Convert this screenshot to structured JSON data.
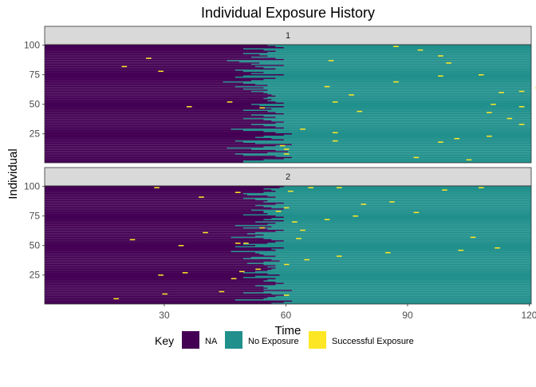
{
  "chart_data": {
    "type": "heatmap",
    "title": "Individual Exposure History",
    "xlabel": "Time",
    "ylabel": "Individual",
    "xlim": [
      1,
      120
    ],
    "ylim": [
      1,
      100
    ],
    "x_ticks": [
      "30",
      "60",
      "90",
      "120"
    ],
    "y_ticks": [
      "25",
      "50",
      "75",
      "100"
    ],
    "panels": [
      {
        "label": "1",
        "band_start": [
          50,
          50,
          55,
          60,
          62,
          58,
          50,
          48,
          56,
          61,
          58,
          52,
          46,
          55,
          58,
          62,
          53,
          50,
          48,
          60,
          57,
          53,
          55,
          60,
          62,
          58,
          55,
          50,
          47,
          60,
          58,
          55,
          52,
          58,
          60,
          57,
          55,
          50,
          58,
          55,
          52,
          60,
          58,
          56,
          50,
          57,
          55,
          60,
          54,
          52,
          60,
          58,
          56,
          57,
          55,
          56,
          58,
          57,
          56,
          55,
          52,
          56,
          50,
          55,
          48,
          56,
          53,
          50,
          45,
          52,
          55,
          58,
          48,
          50,
          60,
          52,
          55,
          50,
          48,
          58,
          55,
          53,
          60,
          52,
          54,
          49,
          46,
          60,
          58,
          52,
          56,
          54,
          50,
          56,
          58,
          55,
          50,
          60,
          58,
          56
        ],
        "successful_exposures": [
          [
            105,
            3
          ],
          [
            92,
            5
          ],
          [
            60,
            8
          ],
          [
            60,
            12
          ],
          [
            59,
            15
          ],
          [
            98,
            18
          ],
          [
            72,
            19
          ],
          [
            72,
            26
          ],
          [
            102,
            21
          ],
          [
            110,
            23
          ],
          [
            64,
            29
          ],
          [
            118,
            33
          ],
          [
            115,
            38
          ],
          [
            110,
            43
          ],
          [
            78,
            44
          ],
          [
            54,
            47
          ],
          [
            111,
            50
          ],
          [
            118,
            48
          ],
          [
            36,
            48
          ],
          [
            46,
            52
          ],
          [
            72,
            52
          ],
          [
            76,
            58
          ],
          [
            113,
            60
          ],
          [
            118,
            61
          ],
          [
            122,
            64
          ],
          [
            70,
            65
          ],
          [
            87,
            69
          ],
          [
            98,
            74
          ],
          [
            108,
            75
          ],
          [
            29,
            78
          ],
          [
            126,
            72
          ],
          [
            20,
            82
          ],
          [
            100,
            85
          ],
          [
            71,
            87
          ],
          [
            26,
            89
          ],
          [
            98,
            91
          ],
          [
            93,
            96
          ],
          [
            87,
            99
          ]
        ]
      },
      {
        "label": "2",
        "band_start": [
          57,
          60,
          62,
          48,
          55,
          56,
          58,
          60,
          57,
          50,
          55,
          62,
          55,
          56,
          55,
          53,
          58,
          60,
          58,
          55,
          56,
          58,
          50,
          53,
          59,
          56,
          50,
          53,
          56,
          57,
          58,
          56,
          58,
          55,
          51,
          55,
          59,
          57,
          50,
          52,
          58,
          55,
          54,
          53,
          47,
          58,
          57,
          60,
          48,
          53,
          50,
          56,
          58,
          60,
          57,
          55,
          47,
          53,
          55,
          51,
          53,
          58,
          60,
          56,
          50,
          57,
          48,
          56,
          58,
          53,
          60,
          55,
          57,
          60,
          58,
          50,
          56,
          55,
          55,
          52,
          60,
          57,
          55,
          53,
          58,
          60,
          55,
          56,
          53,
          50,
          58,
          56,
          51,
          50,
          55,
          58,
          57,
          55,
          59,
          60
        ],
        "successful_exposures": [
          [
            18,
            5
          ],
          [
            30,
            9
          ],
          [
            44,
            11
          ],
          [
            60,
            8
          ],
          [
            47,
            22
          ],
          [
            29,
            25
          ],
          [
            35,
            27
          ],
          [
            49,
            28
          ],
          [
            53,
            30
          ],
          [
            60,
            34
          ],
          [
            65,
            38
          ],
          [
            73,
            41
          ],
          [
            85,
            44
          ],
          [
            103,
            46
          ],
          [
            112,
            48
          ],
          [
            34,
            50
          ],
          [
            50,
            52
          ],
          [
            48,
            52
          ],
          [
            22,
            55
          ],
          [
            63,
            56
          ],
          [
            106,
            57
          ],
          [
            40,
            61
          ],
          [
            64,
            63
          ],
          [
            54,
            65
          ],
          [
            62,
            70
          ],
          [
            70,
            72
          ],
          [
            77,
            75
          ],
          [
            92,
            78
          ],
          [
            58,
            79
          ],
          [
            60,
            82
          ],
          [
            79,
            85
          ],
          [
            86,
            87
          ],
          [
            39,
            91
          ],
          [
            48,
            95
          ],
          [
            61,
            96
          ],
          [
            99,
            97
          ],
          [
            108,
            99
          ],
          [
            28,
            99
          ],
          [
            66,
            99
          ],
          [
            73,
            99
          ]
        ]
      }
    ],
    "legend": {
      "title": "Key",
      "position": "bottom",
      "items": [
        {
          "label": "NA",
          "color": "#440154"
        },
        {
          "label": "No Exposure",
          "color": "#21908C"
        },
        {
          "label": "Successful Exposure",
          "color": "#FDE725"
        }
      ]
    }
  }
}
